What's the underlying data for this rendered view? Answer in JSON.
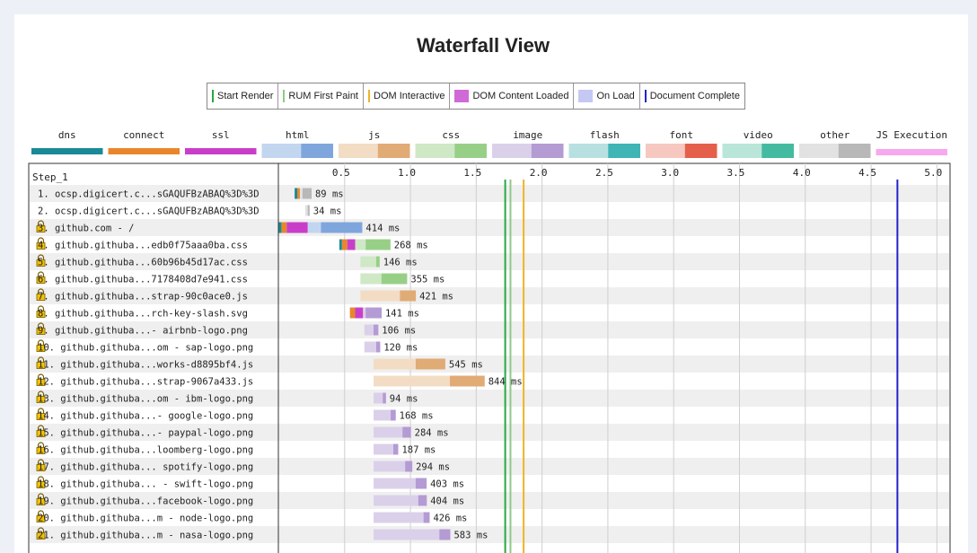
{
  "title": "Waterfall View",
  "legend": [
    {
      "label": "Start Render",
      "color": "#28a745",
      "kind": "line"
    },
    {
      "label": "RUM First Paint",
      "color": "#8fc98a",
      "kind": "line"
    },
    {
      "label": "DOM Interactive",
      "color": "#f0b429",
      "kind": "line"
    },
    {
      "label": "DOM Content Loaded",
      "color": "#d06ad6",
      "kind": "box"
    },
    {
      "label": "On Load",
      "color": "#c4c8f2",
      "kind": "box"
    },
    {
      "label": "Document Complete",
      "color": "#2222cc",
      "kind": "line"
    }
  ],
  "request_types": [
    {
      "label": "dns",
      "light": "#1a8a96",
      "dark": "#1a8a96",
      "split": false
    },
    {
      "label": "connect",
      "light": "#e8872a",
      "dark": "#e8872a",
      "split": false
    },
    {
      "label": "ssl",
      "light": "#c93ec9",
      "dark": "#c93ec9",
      "split": false
    },
    {
      "label": "html",
      "light": "#c3d6f0",
      "dark": "#7fa6dc",
      "split": true
    },
    {
      "label": "js",
      "light": "#f3dcc4",
      "dark": "#e1ab76",
      "split": true
    },
    {
      "label": "css",
      "light": "#cfe8c6",
      "dark": "#98cf87",
      "split": true
    },
    {
      "label": "image",
      "light": "#dbd0ea",
      "dark": "#b49bd4",
      "split": true
    },
    {
      "label": "flash",
      "light": "#b8e0e0",
      "dark": "#3fb5b5",
      "split": true
    },
    {
      "label": "font",
      "light": "#f6c8c0",
      "dark": "#e4604a",
      "split": true
    },
    {
      "label": "video",
      "light": "#b9e6d9",
      "dark": "#43bba0",
      "split": true
    },
    {
      "label": "other",
      "light": "#e2e2e2",
      "dark": "#b8b8b8",
      "split": true
    },
    {
      "label": "JS Execution",
      "light": "#f7a8ee",
      "dark": "#f7a8ee",
      "split": false
    }
  ],
  "chart_data": {
    "type": "bar",
    "step_label": "Step_1",
    "x_ticks": [
      "0.5",
      "1.0",
      "1.5",
      "2.0",
      "2.5",
      "3.0",
      "3.5",
      "4.0",
      "4.5",
      "5.0"
    ],
    "x_unit": "s",
    "xlim": [
      0,
      5.1
    ],
    "markers": [
      {
        "name": "Start Render",
        "x": 1.72,
        "color": "#28a745"
      },
      {
        "name": "RUM First Paint",
        "x": 1.76,
        "color": "#8fc98a"
      },
      {
        "name": "DOM Interactive",
        "x": 1.86,
        "color": "#f0b429"
      },
      {
        "name": "Document Complete",
        "x": 4.7,
        "color": "#2222cc"
      }
    ],
    "requests": [
      {
        "label": "1. ocsp.digicert.c...sGAQUFBzABAQ%3D%3D",
        "secure": false,
        "type": "other",
        "start": 0.12,
        "ms_label": "89 ms",
        "dns": 0.02,
        "connect": 0.02,
        "ssl": 0,
        "wait": 0.02,
        "dur": 0.089
      },
      {
        "label": "2. ocsp.digicert.c...sGAQUFBzABAQ%3D%3D",
        "secure": false,
        "type": "other",
        "start": 0.2,
        "ms_label": "34 ms",
        "dns": 0,
        "connect": 0,
        "ssl": 0,
        "wait": 0.02,
        "dur": 0.034
      },
      {
        "label": "3. github.com - /",
        "secure": true,
        "type": "html",
        "start": 0.0,
        "ms_label": "414 ms",
        "dns": 0.02,
        "connect": 0.04,
        "ssl": 0.16,
        "wait": 0.1,
        "dur": 0.414
      },
      {
        "label": "4. github.githuba...edb0f75aaa0ba.css",
        "secure": true,
        "type": "css",
        "start": 0.46,
        "ms_label": "268 ms",
        "dns": 0.02,
        "connect": 0.04,
        "ssl": 0.06,
        "wait": 0.08,
        "dur": 0.268
      },
      {
        "label": "5. github.githuba...60b96b45d17ac.css",
        "secure": true,
        "type": "css",
        "start": 0.62,
        "ms_label": "146 ms",
        "dns": 0,
        "connect": 0,
        "ssl": 0,
        "wait": 0.12,
        "dur": 0.146
      },
      {
        "label": "6. github.githuba...7178408d7e941.css",
        "secure": true,
        "type": "css",
        "start": 0.62,
        "ms_label": "355 ms",
        "dns": 0,
        "connect": 0,
        "ssl": 0,
        "wait": 0.16,
        "dur": 0.355
      },
      {
        "label": "7. github.githuba...strap-90c0ace0.js",
        "secure": true,
        "type": "js",
        "start": 0.62,
        "ms_label": "421 ms",
        "dns": 0,
        "connect": 0,
        "ssl": 0,
        "wait": 0.3,
        "dur": 0.421
      },
      {
        "label": "8. github.githuba...rch-key-slash.svg",
        "secure": true,
        "type": "image",
        "start": 0.54,
        "ms_label": "141 ms",
        "dns": 0,
        "connect": 0.04,
        "ssl": 0.06,
        "wait": 0.02,
        "dur": 0.141
      },
      {
        "label": "9. github.githuba...- airbnb-logo.png",
        "secure": true,
        "type": "image",
        "start": 0.65,
        "ms_label": "106 ms",
        "dns": 0,
        "connect": 0,
        "ssl": 0,
        "wait": 0.07,
        "dur": 0.106
      },
      {
        "label": "10. github.githuba...om - sap-logo.png",
        "secure": true,
        "type": "image",
        "start": 0.65,
        "ms_label": "120 ms",
        "dns": 0,
        "connect": 0,
        "ssl": 0,
        "wait": 0.09,
        "dur": 0.12
      },
      {
        "label": "11. github.githuba...works-d8895bf4.js",
        "secure": true,
        "type": "js",
        "start": 0.72,
        "ms_label": "545 ms",
        "dns": 0,
        "connect": 0,
        "ssl": 0,
        "wait": 0.32,
        "dur": 0.545
      },
      {
        "label": "12. github.githuba...strap-9067a433.js",
        "secure": true,
        "type": "js",
        "start": 0.72,
        "ms_label": "844 ms",
        "dns": 0,
        "connect": 0,
        "ssl": 0,
        "wait": 0.58,
        "dur": 0.844
      },
      {
        "label": "13. github.githuba...om - ibm-logo.png",
        "secure": true,
        "type": "image",
        "start": 0.72,
        "ms_label": "94 ms",
        "dns": 0,
        "connect": 0,
        "ssl": 0,
        "wait": 0.07,
        "dur": 0.094
      },
      {
        "label": "14. github.githuba...- google-logo.png",
        "secure": true,
        "type": "image",
        "start": 0.72,
        "ms_label": "168 ms",
        "dns": 0,
        "connect": 0,
        "ssl": 0,
        "wait": 0.13,
        "dur": 0.168
      },
      {
        "label": "15. github.githuba...- paypal-logo.png",
        "secure": true,
        "type": "image",
        "start": 0.72,
        "ms_label": "284 ms",
        "dns": 0,
        "connect": 0,
        "ssl": 0,
        "wait": 0.22,
        "dur": 0.284
      },
      {
        "label": "16. github.githuba...loomberg-logo.png",
        "secure": true,
        "type": "image",
        "start": 0.72,
        "ms_label": "187 ms",
        "dns": 0,
        "connect": 0,
        "ssl": 0,
        "wait": 0.15,
        "dur": 0.187
      },
      {
        "label": "17. github.githuba... spotify-logo.png",
        "secure": true,
        "type": "image",
        "start": 0.72,
        "ms_label": "294 ms",
        "dns": 0,
        "connect": 0,
        "ssl": 0,
        "wait": 0.24,
        "dur": 0.294
      },
      {
        "label": "18. github.githuba... - swift-logo.png",
        "secure": true,
        "type": "image",
        "start": 0.72,
        "ms_label": "403 ms",
        "dns": 0,
        "connect": 0,
        "ssl": 0,
        "wait": 0.32,
        "dur": 0.403
      },
      {
        "label": "19. github.githuba...facebook-logo.png",
        "secure": true,
        "type": "image",
        "start": 0.72,
        "ms_label": "404 ms",
        "dns": 0,
        "connect": 0,
        "ssl": 0,
        "wait": 0.34,
        "dur": 0.404
      },
      {
        "label": "20. github.githuba...m - node-logo.png",
        "secure": true,
        "type": "image",
        "start": 0.72,
        "ms_label": "426 ms",
        "dns": 0,
        "connect": 0,
        "ssl": 0,
        "wait": 0.38,
        "dur": 0.426
      },
      {
        "label": "21. github.githuba...m - nasa-logo.png",
        "secure": true,
        "type": "image",
        "start": 0.72,
        "ms_label": "583 ms",
        "dns": 0,
        "connect": 0,
        "ssl": 0,
        "wait": 0.5,
        "dur": 0.583
      }
    ]
  }
}
